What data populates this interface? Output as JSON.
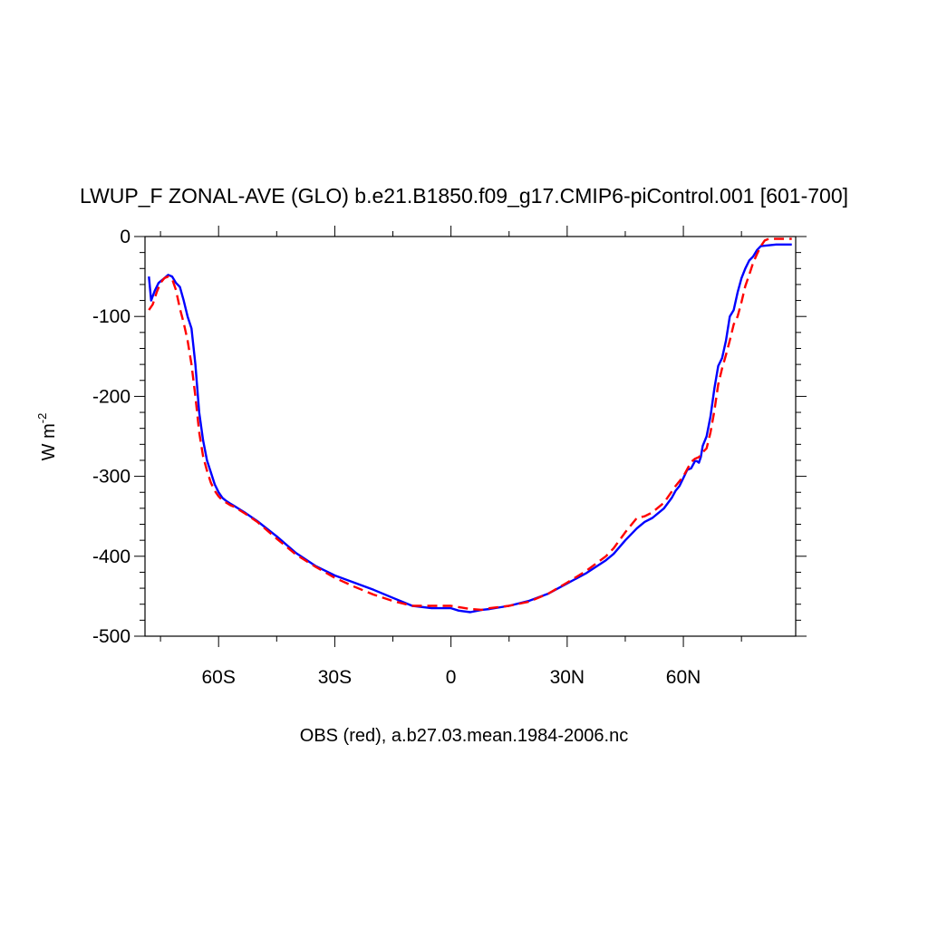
{
  "chart_data": {
    "type": "line",
    "title": "LWUP_F ZONAL-AVE (GLO) b.e21.B1850.f09_g17.CMIP6-piControl.001 [601-700]",
    "ylabel_main": "W m",
    "ylabel_sup": "-2",
    "xlabel": "OBS (red), a.b27.03.mean.1984-2006.nc",
    "xlim": [
      -79,
      89
    ],
    "ylim": [
      -500,
      0
    ],
    "xticks": [
      {
        "value": -60,
        "label": "60S"
      },
      {
        "value": -30,
        "label": "30S"
      },
      {
        "value": 0,
        "label": "0"
      },
      {
        "value": 30,
        "label": "30N"
      },
      {
        "value": 60,
        "label": "60N"
      }
    ],
    "yticks": [
      {
        "value": 0,
        "label": "0"
      },
      {
        "value": -100,
        "label": "-100"
      },
      {
        "value": -200,
        "label": "-200"
      },
      {
        "value": -300,
        "label": "-300"
      },
      {
        "value": -400,
        "label": "-400"
      },
      {
        "value": -500,
        "label": "-500"
      }
    ],
    "grid": false,
    "series": [
      {
        "color": "#0000ff",
        "style": "solid",
        "x": [
          -78.0,
          -77.4,
          -76.5,
          -75.5,
          -74.0,
          -73.0,
          -72.0,
          -71.0,
          -70.0,
          -69.0,
          -68.0,
          -67.0,
          -66.0,
          -65.0,
          -64.0,
          -63.0,
          -62.0,
          -61.0,
          -60.0,
          -59.0,
          -58.0,
          -57.0,
          -56.0,
          -55.0,
          -53.0,
          -50.0,
          -45.0,
          -40.0,
          -35.0,
          -30.0,
          -25.0,
          -20.0,
          -15.0,
          -10.0,
          -5.0,
          0.0,
          2.0,
          5.0,
          8.0,
          10.0,
          15.0,
          20.0,
          25.0,
          30.0,
          35.0,
          40.0,
          42.0,
          45.0,
          48.0,
          50.0,
          52.0,
          55.0,
          57.0,
          58.0,
          59.0,
          60.0,
          61.0,
          62.0,
          63.0,
          63.5,
          64.0,
          64.5,
          65.0,
          66.0,
          67.0,
          68.0,
          69.0,
          70.0,
          71.0,
          72.0,
          73.0,
          74.0,
          75.0,
          76.0,
          77.0,
          78.0,
          79.0,
          80.0,
          82.0,
          84.0,
          86.0,
          88.0
        ],
        "y": [
          -50,
          -80,
          -68,
          -58,
          -52,
          -48,
          -50,
          -58,
          -63,
          -80,
          -100,
          -115,
          -160,
          -220,
          -255,
          -280,
          -295,
          -310,
          -320,
          -327,
          -331,
          -334,
          -337,
          -340,
          -346,
          -356,
          -375,
          -396,
          -412,
          -424,
          -433,
          -442,
          -452,
          -462,
          -465,
          -465,
          -468,
          -470,
          -467,
          -466,
          -462,
          -456,
          -447,
          -434,
          -421,
          -405,
          -397,
          -380,
          -365,
          -357,
          -352,
          -340,
          -327,
          -318,
          -312,
          -302,
          -292,
          -290,
          -281,
          -281,
          -283,
          -276,
          -262,
          -250,
          -225,
          -190,
          -162,
          -152,
          -130,
          -100,
          -92,
          -70,
          -52,
          -40,
          -30,
          -25,
          -17,
          -12,
          -11,
          -10,
          -10,
          -10
        ]
      },
      {
        "color": "#ff0000",
        "style": "dashed",
        "x": [
          -78.0,
          -77.0,
          -76.0,
          -75.0,
          -74.0,
          -73.0,
          -72.0,
          -71.0,
          -70.0,
          -69.0,
          -68.0,
          -67.0,
          -66.0,
          -65.0,
          -64.0,
          -63.0,
          -62.0,
          -61.0,
          -60.0,
          -59.0,
          -58.0,
          -57.0,
          -56.0,
          -55.0,
          -53.0,
          -50.0,
          -45.0,
          -40.0,
          -35.0,
          -30.0,
          -25.0,
          -20.0,
          -15.0,
          -10.0,
          -5.0,
          0.0,
          5.0,
          8.0,
          10.0,
          15.0,
          20.0,
          25.0,
          30.0,
          35.0,
          40.0,
          42.0,
          45.0,
          48.0,
          50.0,
          52.0,
          55.0,
          58.0,
          60.0,
          62.0,
          63.0,
          64.0,
          65.0,
          66.0,
          67.0,
          68.0,
          69.0,
          70.0,
          71.0,
          72.0,
          73.0,
          74.0,
          75.0,
          76.0,
          77.0,
          78.0,
          79.0,
          80.0,
          81.0,
          82.0,
          84.0,
          86.0,
          88.0
        ],
        "y": [
          -92,
          -85,
          -70,
          -58,
          -52,
          -50,
          -53,
          -67,
          -90,
          -108,
          -130,
          -160,
          -200,
          -245,
          -275,
          -293,
          -308,
          -318,
          -325,
          -330,
          -333,
          -336,
          -338,
          -341,
          -347,
          -357,
          -378,
          -398,
          -413,
          -427,
          -438,
          -448,
          -456,
          -462,
          -462,
          -462,
          -466,
          -467,
          -465,
          -462,
          -457,
          -447,
          -433,
          -418,
          -400,
          -390,
          -370,
          -352,
          -350,
          -345,
          -333,
          -312,
          -300,
          -282,
          -278,
          -276,
          -270,
          -265,
          -245,
          -218,
          -185,
          -165,
          -148,
          -130,
          -110,
          -100,
          -82,
          -62,
          -48,
          -33,
          -22,
          -12,
          -5,
          -3,
          -3,
          -3,
          -3
        ]
      }
    ]
  }
}
